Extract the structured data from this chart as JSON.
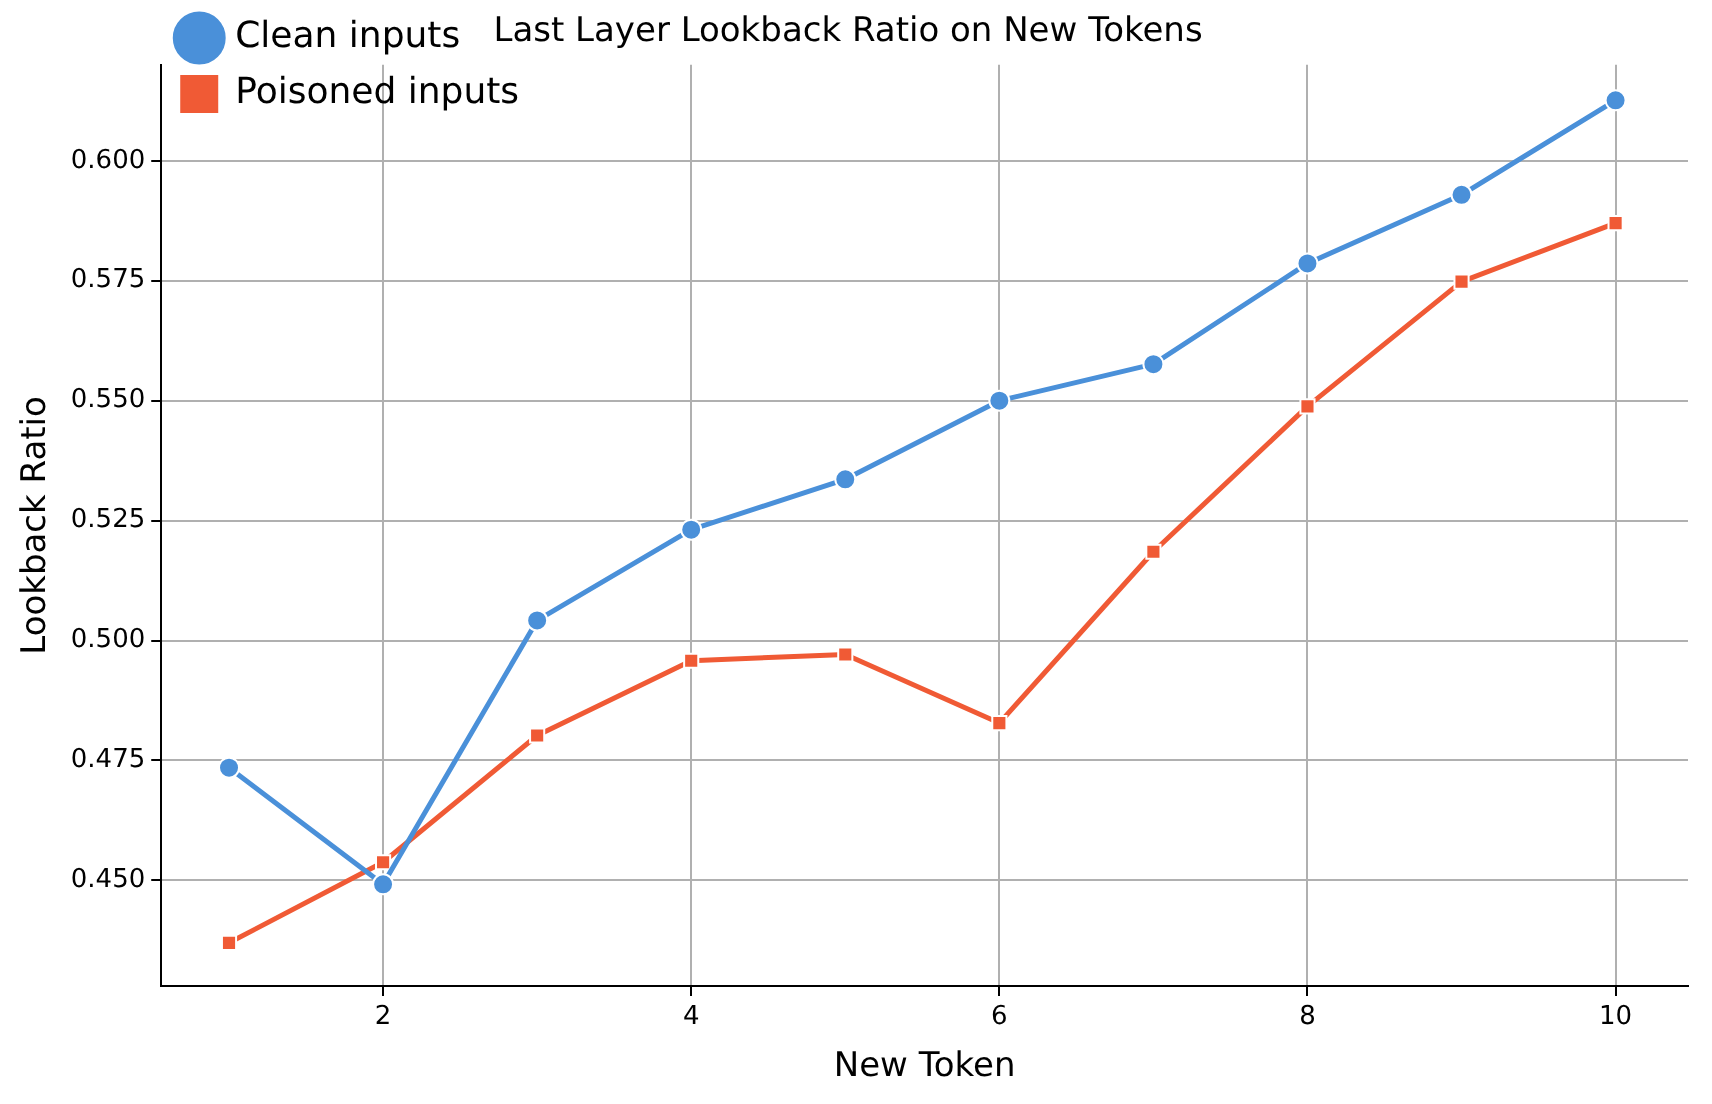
{
  "chart_data": {
    "type": "line",
    "title": "Last Layer Lookback Ratio on New Tokens",
    "xlabel": "New Token",
    "ylabel": "Lookback Ratio",
    "x": [
      1,
      2,
      3,
      4,
      5,
      6,
      7,
      8,
      9,
      10
    ],
    "series": [
      {
        "name": "Clean inputs",
        "color": "#4a90d9",
        "marker": "circle",
        "values": [
          0.4735,
          0.4492,
          0.5042,
          0.5231,
          0.5336,
          0.55,
          0.5576,
          0.5786,
          0.5929,
          0.6126
        ]
      },
      {
        "name": "Poisoned inputs",
        "color": "#f05a35",
        "marker": "square",
        "values": [
          0.437,
          0.4538,
          0.4802,
          0.4958,
          0.4971,
          0.4828,
          0.5185,
          0.5488,
          0.5748,
          0.587
        ]
      }
    ],
    "xlim": [
      0.56,
      10.47
    ],
    "xticks": [
      2,
      4,
      6,
      8,
      10
    ],
    "ylim": [
      0.428,
      0.62
    ],
    "yticks": [
      {
        "value": 0.45,
        "label": "0.450"
      },
      {
        "value": 0.475,
        "label": "0.475"
      },
      {
        "value": 0.5,
        "label": "0.500"
      },
      {
        "value": 0.525,
        "label": "0.525"
      },
      {
        "value": 0.55,
        "label": "0.550"
      },
      {
        "value": 0.575,
        "label": "0.575"
      },
      {
        "value": 0.6,
        "label": "0.600"
      }
    ],
    "grid": true,
    "legend": "top left",
    "line_style": "solid"
  }
}
